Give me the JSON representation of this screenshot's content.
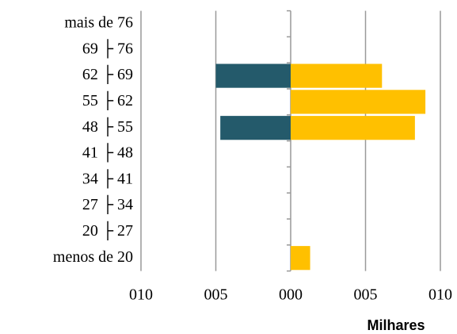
{
  "chart_data": {
    "type": "bar",
    "orientation": "horizontal",
    "x_label": "Milhares",
    "categories": [
      "mais de 76",
      "69 ├ 76",
      "62 ├ 69",
      "55 ├ 62",
      "48 ├ 55",
      "41 ├ 48",
      "34 ├ 41",
      "27 ├ 34",
      "20 ├ 27",
      "menos de 20"
    ],
    "series": [
      {
        "color": "#245a6b",
        "values": [
          null,
          null,
          -5.0,
          null,
          -4.7,
          null,
          null,
          null,
          null,
          null
        ]
      },
      {
        "color": "#ffc000",
        "values": [
          null,
          null,
          6.1,
          9.0,
          8.3,
          null,
          null,
          null,
          null,
          1.3
        ]
      }
    ],
    "xlim": [
      -10,
      10
    ],
    "xticks": [
      {
        "value": -10,
        "label": "010"
      },
      {
        "value": -5,
        "label": "005"
      },
      {
        "value": 0,
        "label": "000"
      },
      {
        "value": 5,
        "label": "005"
      },
      {
        "value": 10,
        "label": "010"
      }
    ],
    "grid": true
  }
}
